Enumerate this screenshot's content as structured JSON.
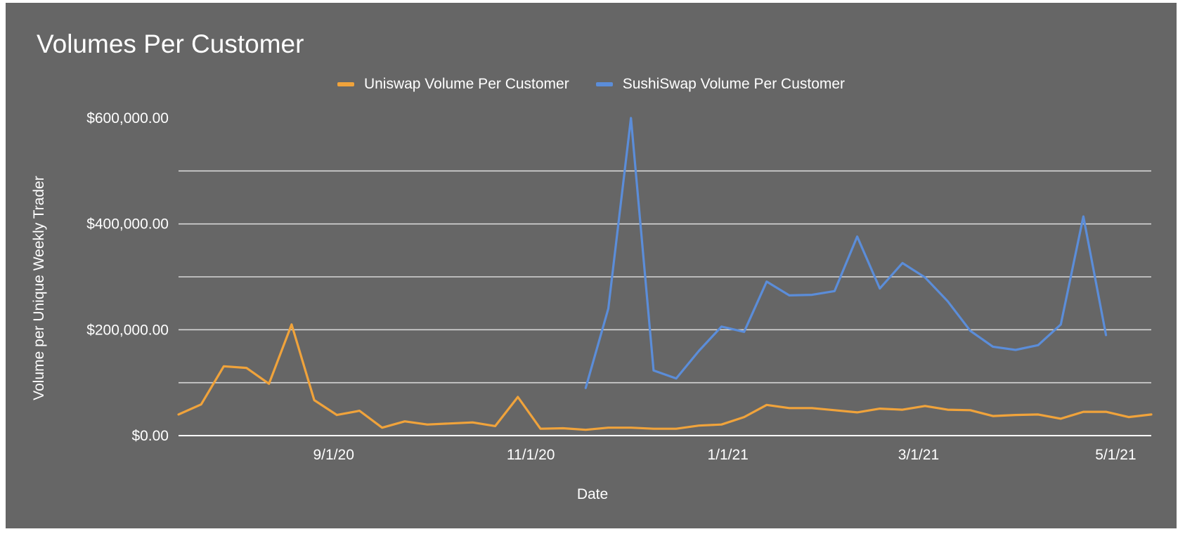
{
  "chart_data": {
    "type": "line",
    "title": "Volumes Per Customer",
    "xlabel": "Date",
    "ylabel": "Volume per Unique Weekly Trader",
    "x_start": "2020-07-15",
    "x_step_days": 7,
    "x_range": [
      "2020-07-15",
      "2021-05-12"
    ],
    "x_ticks": [
      {
        "label": "9/1/20",
        "date": "2020-09-01"
      },
      {
        "label": "11/1/20",
        "date": "2020-11-01"
      },
      {
        "label": "1/1/21",
        "date": "2021-01-01"
      },
      {
        "label": "3/1/21",
        "date": "2021-03-01"
      },
      {
        "label": "5/1/21",
        "date": "2021-05-01"
      }
    ],
    "y_ticks": [
      {
        "label": "$0.00",
        "value": 0
      },
      {
        "label": "$200,000.00",
        "value": 200000
      },
      {
        "label": "$400,000.00",
        "value": 400000
      },
      {
        "label": "$600,000.00",
        "value": 600000
      }
    ],
    "ylim": [
      0,
      600000
    ],
    "minor_gridlines": true,
    "legend_position": "top",
    "series": [
      {
        "name": "Uniswap Volume Per Customer",
        "color": "#f0a33b",
        "values": [
          40000,
          59000,
          131000,
          128000,
          98000,
          210000,
          67000,
          39000,
          47000,
          15000,
          27000,
          21000,
          23000,
          25000,
          18000,
          73000,
          13000,
          14000,
          11000,
          15000,
          15000,
          13000,
          13000,
          19000,
          21000,
          35000,
          58000,
          52000,
          52000,
          48000,
          44000,
          51000,
          49000,
          56000,
          49000,
          48000,
          37000,
          39000,
          40000,
          32000,
          45000,
          45000,
          35000,
          40000
        ]
      },
      {
        "name": "SushiSwap Volume Per Customer",
        "color": "#5b8dd9",
        "values": [
          null,
          null,
          null,
          null,
          null,
          null,
          null,
          null,
          null,
          null,
          null,
          null,
          null,
          null,
          null,
          null,
          null,
          null,
          90000,
          240000,
          600000,
          123000,
          108000,
          160000,
          206000,
          196000,
          291000,
          265000,
          266000,
          273000,
          376000,
          278000,
          326000,
          299000,
          254000,
          198000,
          168000,
          162000,
          171000,
          210000,
          414000,
          190000,
          null,
          null
        ]
      }
    ]
  }
}
